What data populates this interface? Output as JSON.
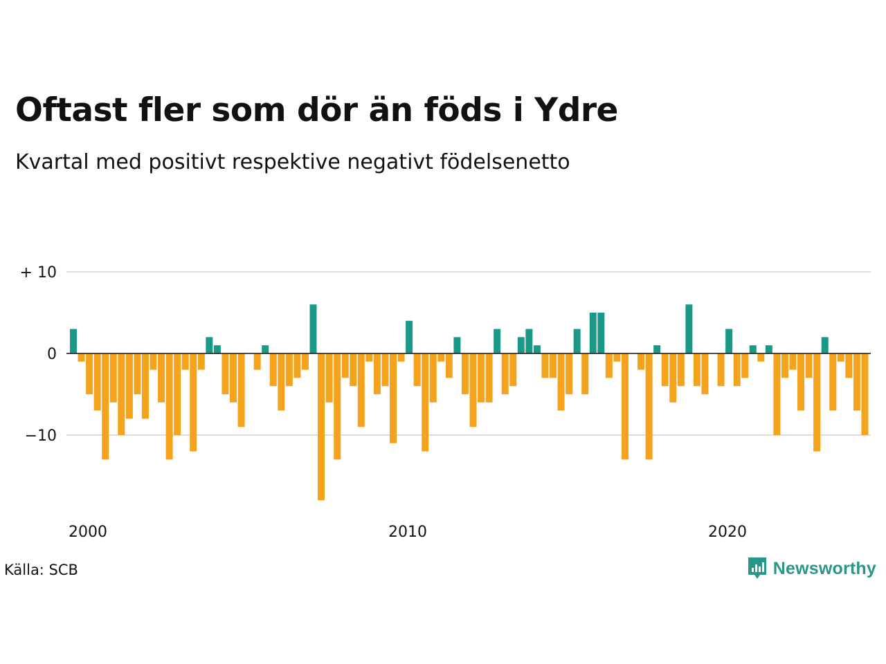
{
  "header": {
    "title": "Oftast fler som dör än föds i Ydre",
    "subtitle": "Kvartal med positivt respektive negativt födelsenetto"
  },
  "footer": {
    "source": "Källa: SCB",
    "brand": "Newsworthy",
    "brand_icon": "bar-chart-bubble-icon"
  },
  "colors": {
    "positive": "#1a9988",
    "negative": "#f5a21c",
    "grid": "#dddddd",
    "zero": "#111111",
    "brand": "#2a9686"
  },
  "chart_data": {
    "type": "bar",
    "title": "Oftast fler som dör än föds i Ydre",
    "subtitle": "Kvartal med positivt respektive negativt födelsenetto",
    "xlabel": "",
    "ylabel": "",
    "ylim": [
      -19,
      11
    ],
    "y_ticks": [
      {
        "value": 10,
        "label": "+ 10"
      },
      {
        "value": 0,
        "label": "0"
      },
      {
        "value": -10,
        "label": "−10"
      }
    ],
    "x_ticks": [
      {
        "value": 2000,
        "label": "2000"
      },
      {
        "value": 2010,
        "label": "2010"
      },
      {
        "value": 2020,
        "label": "2020"
      }
    ],
    "grid": true,
    "legend": "none",
    "start_quarter": "2000Q1",
    "values": [
      3,
      -1,
      -5,
      -7,
      -13,
      -6,
      -10,
      -8,
      -5,
      -8,
      -2,
      -6,
      -13,
      -10,
      -2,
      -12,
      -2,
      2,
      1,
      -5,
      -6,
      -9,
      0,
      -2,
      1,
      -4,
      -7,
      -4,
      -3,
      -2,
      6,
      -18,
      -6,
      -13,
      -3,
      -4,
      -9,
      -1,
      -5,
      -4,
      -11,
      -1,
      4,
      -4,
      -12,
      -6,
      -1,
      -3,
      2,
      -5,
      -9,
      -6,
      -6,
      3,
      -5,
      -4,
      2,
      3,
      1,
      -3,
      -3,
      -7,
      -5,
      3,
      -5,
      5,
      5,
      -3,
      -1,
      -13,
      0,
      -2,
      -13,
      1,
      -4,
      -6,
      -4,
      6,
      -4,
      -5,
      0,
      -4,
      3,
      -4,
      -3,
      1,
      -1,
      1,
      -10,
      -3,
      -2,
      -7,
      -3,
      -12,
      2,
      -7,
      -1,
      -3,
      -7,
      -10
    ]
  }
}
